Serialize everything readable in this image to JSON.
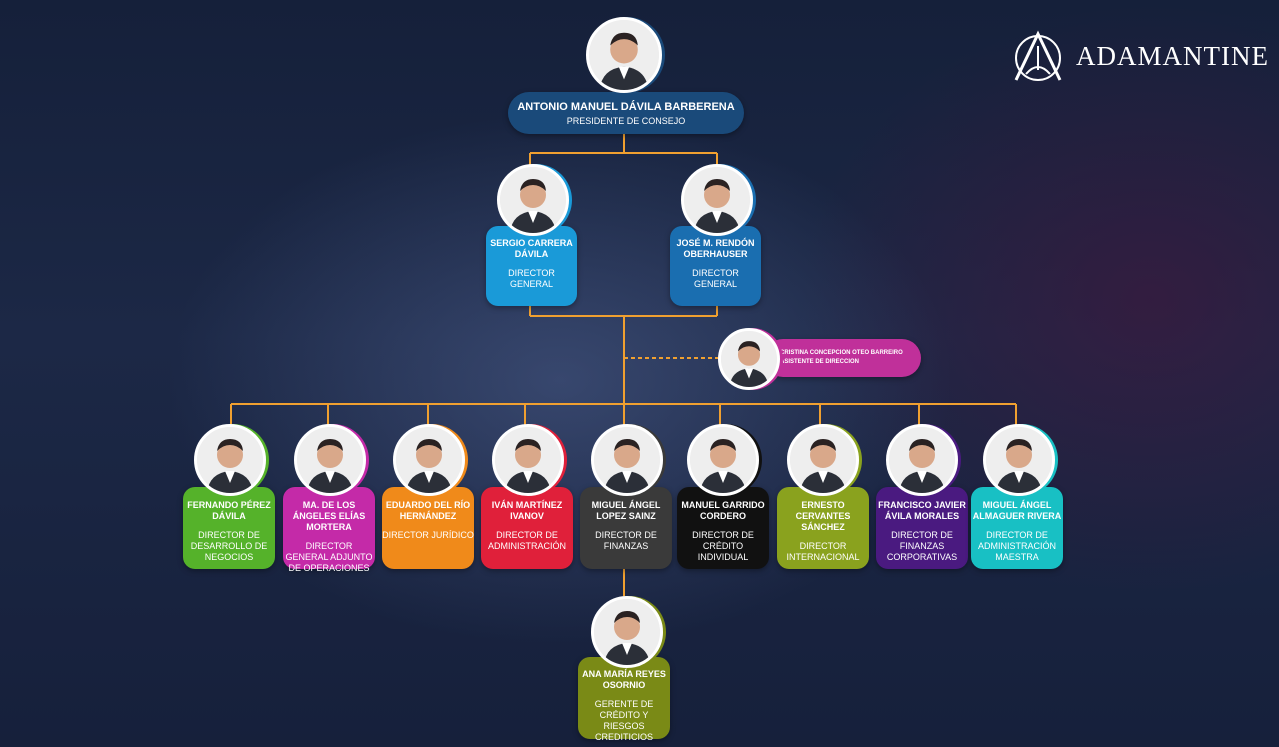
{
  "logo": {
    "text": "ADAMANTINE",
    "icon": "adamantine-a-icon"
  },
  "president": {
    "name": "ANTONIO MANUEL DÁVILA BARBERENA",
    "role": "PRESIDENTE DE CONSEJO",
    "color": "#1a4a7a"
  },
  "general_directors": [
    {
      "name": "SERGIO CARRERA DÁVILA",
      "role": "DIRECTOR GENERAL",
      "color": "#1a9ad8"
    },
    {
      "name": "JOSÉ M. RENDÓN OBERHAUSER",
      "role": "DIRECTOR GENERAL",
      "color": "#1a6eb0"
    }
  ],
  "assistant": {
    "name": "CRISTINA CONCEPCION OTEO BARREIRO",
    "role": "ASISTENTE DE DIRECCION",
    "color": "#c0309a"
  },
  "directors": [
    {
      "name": "FERNANDO PÉREZ DÁVILA",
      "role": "DIRECTOR DE DESARROLLO DE NEGOCIOS",
      "color": "#55b22a"
    },
    {
      "name": "MA. DE LOS ÁNGELES ELÍAS MORTERA",
      "role": "DIRECTOR GENERAL ADJUNTO DE OPERACIONES",
      "color": "#c42aa8"
    },
    {
      "name": "EDUARDO DEL RÍO HERNÁNDEZ",
      "role": "DIRECTOR JURÍDICO",
      "color": "#f08a1a"
    },
    {
      "name": "IVÁN MARTÍNEZ IVANOV",
      "role": "DIRECTOR DE ADMINISTRACIÓN",
      "color": "#e0203a"
    },
    {
      "name": "MIGUEL ÁNGEL LOPEZ SAINZ",
      "role": "DIRECTOR DE FINANZAS",
      "color": "#3a3a3a"
    },
    {
      "name": "MANUEL GARRIDO CORDERO",
      "role": "DIRECTOR DE CRÉDITO INDIVIDUAL",
      "color": "#111111"
    },
    {
      "name": "ERNESTO CERVANTES SÁNCHEZ",
      "role": "DIRECTOR INTERNACIONAL",
      "color": "#8aa21e"
    },
    {
      "name": "FRANCISCO JAVIER ÁVILA MORALES",
      "role": "DIRECTOR DE FINANZAS CORPORATIVAS",
      "color": "#4a1a80"
    },
    {
      "name": "MIGUEL ÁNGEL ALMAGUER RIVERA",
      "role": "DIRECTOR DE ADMINISTRACIÓN MAESTRA",
      "color": "#18c0c4"
    }
  ],
  "manager": {
    "name": "ANA MARÍA REYES OSORNIO",
    "role": "GERENTE DE CRÉDITO Y RIESGOS CREDITICIOS",
    "color": "#7a8a16"
  },
  "connector_color": "#f0a030"
}
